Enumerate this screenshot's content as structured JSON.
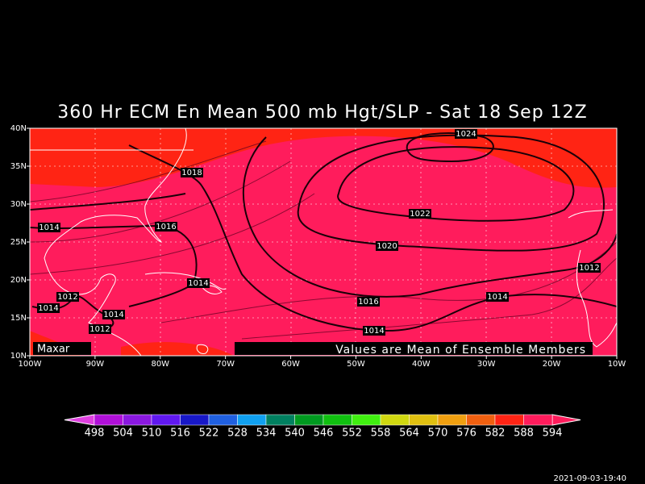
{
  "title": "360 Hr ECM En Mean 500 mb Hgt/SLP - Sat 18 Sep 12Z",
  "map": {
    "lat_labels": [
      "40N",
      "35N",
      "30N",
      "25N",
      "20N",
      "15N",
      "10N"
    ],
    "lon_labels": [
      "100W",
      "90W",
      "80W",
      "70W",
      "60W",
      "50W",
      "40W",
      "30W",
      "20W",
      "10W"
    ],
    "contour_labels": [
      "1024",
      "1018",
      "1022",
      "1016",
      "1014",
      "1020",
      "1012",
      "1014",
      "1012",
      "1016",
      "1014",
      "1014",
      "1014",
      "1012",
      "1014"
    ],
    "credit": "Maxar",
    "caption": "Values are Mean of Ensemble Members"
  },
  "colorbar": {
    "labels": [
      498,
      504,
      510,
      516,
      522,
      528,
      534,
      540,
      546,
      552,
      558,
      564,
      570,
      576,
      582,
      588,
      594
    ],
    "colors": [
      "#b010d8",
      "#8a18e0",
      "#6018f0",
      "#1818c8",
      "#2060e0",
      "#10a0f0",
      "#008060",
      "#009a20",
      "#10c010",
      "#40f010",
      "#d0d810",
      "#e0c010",
      "#f0a010",
      "#f06010",
      "#ff2414",
      "#ff1c5c"
    ],
    "low_color": "#e040e0",
    "high_color": "#ff1c5c"
  },
  "timestamp": "2021-09-03-19:40"
}
